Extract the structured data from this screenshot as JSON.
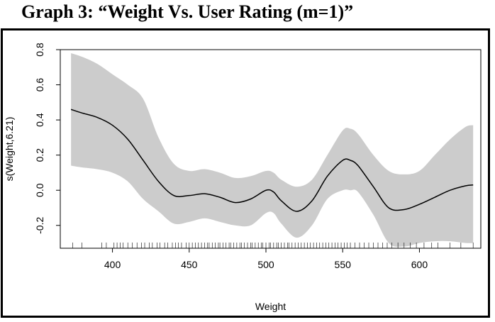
{
  "document": {
    "title": "Graph 3: “Weight Vs. User Rating (m=1)”"
  },
  "chart_data": {
    "type": "line",
    "title": "",
    "xlabel": "Weight",
    "ylabel": "s(Weight,6.21)",
    "xlim": [
      366,
      640
    ],
    "ylim": [
      -0.33,
      0.8
    ],
    "x_ticks": [
      400,
      450,
      500,
      550,
      600
    ],
    "y_ticks": [
      -0.2,
      0.0,
      0.2,
      0.4,
      0.6,
      0.8
    ],
    "x_tick_labels": [
      "400",
      "450",
      "500",
      "550",
      "600"
    ],
    "y_tick_labels": [
      "-0.2",
      "0.0",
      "0.2",
      "0.4",
      "0.6",
      "0.8"
    ],
    "grid": false,
    "colors": {
      "line": "#000000",
      "band": "#cccccc"
    },
    "series": [
      {
        "x": [
          373,
          380,
          390,
          400,
          410,
          420,
          430,
          440,
          450,
          460,
          470,
          480,
          490,
          500,
          505,
          510,
          520,
          530,
          540,
          550,
          555,
          560,
          570,
          580,
          590,
          600,
          610,
          620,
          630,
          635
        ],
        "fit": [
          0.46,
          0.44,
          0.415,
          0.37,
          0.29,
          0.17,
          0.05,
          -0.03,
          -0.03,
          -0.02,
          -0.04,
          -0.07,
          -0.05,
          0.0,
          -0.01,
          -0.06,
          -0.12,
          -0.06,
          0.08,
          0.17,
          0.17,
          0.14,
          0.02,
          -0.1,
          -0.11,
          -0.08,
          -0.04,
          0.0,
          0.025,
          0.03
        ],
        "upper": [
          0.78,
          0.76,
          0.72,
          0.66,
          0.6,
          0.52,
          0.3,
          0.15,
          0.11,
          0.12,
          0.1,
          0.07,
          0.08,
          0.11,
          0.1,
          0.06,
          0.02,
          0.06,
          0.2,
          0.34,
          0.35,
          0.32,
          0.2,
          0.11,
          0.09,
          0.11,
          0.2,
          0.29,
          0.36,
          0.37
        ],
        "lower": [
          0.14,
          0.13,
          0.12,
          0.1,
          0.05,
          -0.05,
          -0.12,
          -0.19,
          -0.18,
          -0.16,
          -0.18,
          -0.2,
          -0.2,
          -0.13,
          -0.13,
          -0.19,
          -0.27,
          -0.2,
          -0.05,
          0.0,
          0.0,
          -0.01,
          -0.14,
          -0.3,
          -0.32,
          -0.3,
          -0.29,
          -0.29,
          -0.3,
          -0.3
        ]
      }
    ],
    "rug": [
      374,
      380,
      393,
      396,
      401,
      403,
      405,
      407,
      410,
      413,
      416,
      419,
      421,
      424,
      426,
      429,
      431,
      434,
      436,
      439,
      441,
      443,
      445,
      448,
      450,
      452,
      454,
      456,
      458,
      460,
      462,
      463,
      465,
      467,
      469,
      470,
      472,
      474,
      476,
      477,
      479,
      481,
      483,
      484,
      486,
      488,
      490,
      491,
      493,
      495,
      497,
      498,
      500,
      502,
      503,
      505,
      507,
      508,
      510,
      512,
      514,
      515,
      517,
      519,
      521,
      523,
      525,
      527,
      529,
      531,
      533,
      535,
      537,
      539,
      541,
      543,
      545,
      547,
      549,
      551,
      553,
      555,
      558,
      561,
      564,
      567,
      570,
      573,
      576,
      579,
      582,
      586,
      590,
      594,
      598,
      603,
      608,
      612,
      620,
      627,
      635
    ]
  }
}
